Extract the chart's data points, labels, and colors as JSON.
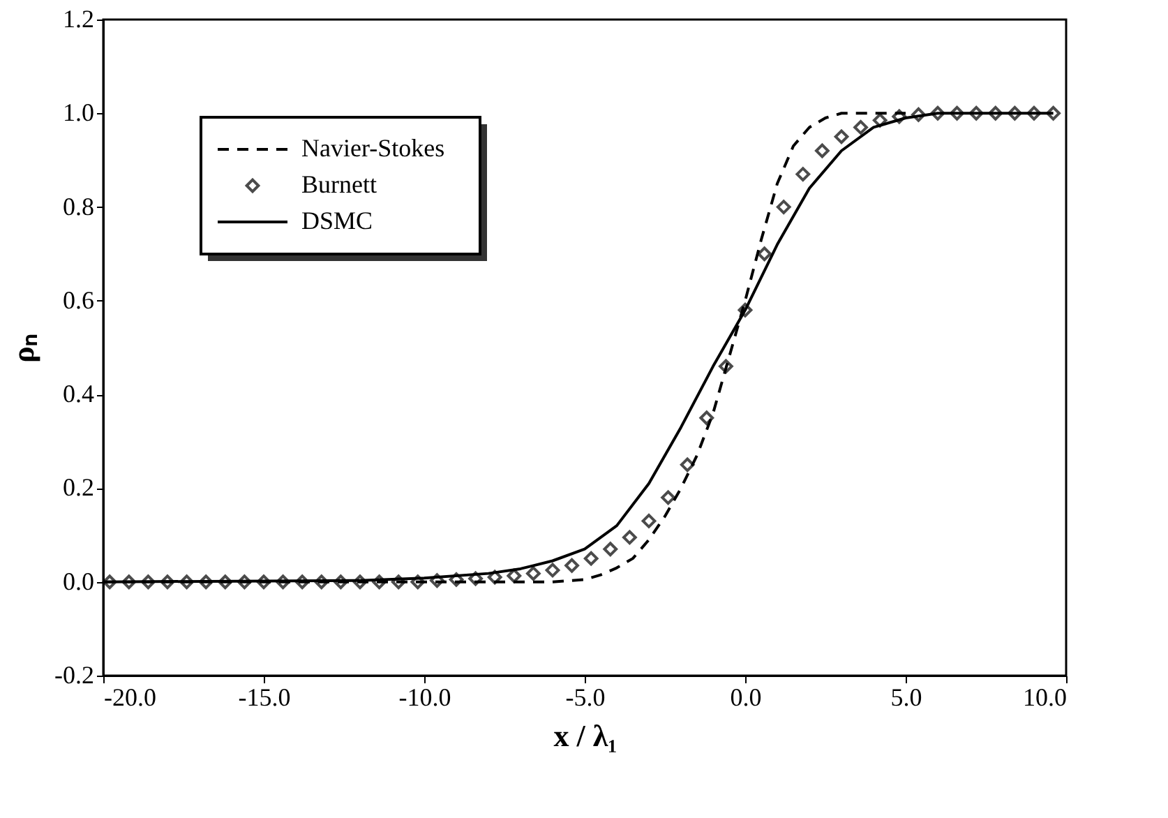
{
  "chart_data": {
    "type": "line",
    "xlabel": "x / λ₁",
    "ylabel": "ρₙ",
    "xlim": [
      -20,
      10
    ],
    "ylim": [
      -0.2,
      1.2
    ],
    "xticks": [
      {
        "value": -20,
        "label": "-20.0"
      },
      {
        "value": -15,
        "label": "-15.0"
      },
      {
        "value": -10,
        "label": "-10.0"
      },
      {
        "value": -5,
        "label": "-5.0"
      },
      {
        "value": 0,
        "label": "0.0"
      },
      {
        "value": 5,
        "label": "5.0"
      },
      {
        "value": 10,
        "label": "10.0"
      }
    ],
    "yticks": [
      {
        "value": -0.2,
        "label": "-0.2"
      },
      {
        "value": 0,
        "label": "0.0"
      },
      {
        "value": 0.2,
        "label": "0.2"
      },
      {
        "value": 0.4,
        "label": "0.4"
      },
      {
        "value": 0.6,
        "label": "0.6"
      },
      {
        "value": 0.8,
        "label": "0.8"
      },
      {
        "value": 1.0,
        "label": "1.0"
      },
      {
        "value": 1.2,
        "label": "1.2"
      }
    ],
    "legend": "top left",
    "grid": false,
    "series": [
      {
        "name": "Navier-Stokes",
        "type": "line",
        "line_style": "dashed",
        "color": "#000000",
        "x": [
          -20,
          -6,
          -5,
          -4.5,
          -4,
          -3.5,
          -3,
          -2.5,
          -2,
          -1.5,
          -1,
          -0.5,
          0,
          0.5,
          1,
          1.5,
          2,
          2.5,
          3,
          5
        ],
        "values": [
          0,
          0,
          0.005,
          0.015,
          0.03,
          0.05,
          0.09,
          0.14,
          0.2,
          0.27,
          0.36,
          0.48,
          0.6,
          0.73,
          0.85,
          0.93,
          0.97,
          0.99,
          1.0,
          1.0
        ]
      },
      {
        "name": "Burnett",
        "type": "scatter",
        "marker": "diamond",
        "color": "#000000",
        "x": [
          -19.8,
          -19.2,
          -18.6,
          -18.0,
          -17.4,
          -16.8,
          -16.2,
          -15.6,
          -15.0,
          -14.4,
          -13.8,
          -13.2,
          -12.6,
          -12.0,
          -11.4,
          -10.8,
          -10.2,
          -9.6,
          -9.0,
          -8.4,
          -7.8,
          -7.2,
          -6.6,
          -6.0,
          -5.4,
          -4.8,
          -4.2,
          -3.6,
          -3.0,
          -2.4,
          -1.8,
          -1.2,
          -0.6,
          0.0,
          0.6,
          1.2,
          1.8,
          2.4,
          3.0,
          3.6,
          4.2,
          4.8,
          5.4,
          6.0,
          6.6,
          7.2,
          7.8,
          8.4,
          9.0,
          9.6
        ],
        "values": [
          0,
          0,
          0,
          0,
          0,
          0,
          0,
          0,
          0,
          0,
          0,
          0,
          0,
          0,
          0,
          0,
          0,
          0.003,
          0.005,
          0.007,
          0.01,
          0.013,
          0.018,
          0.025,
          0.035,
          0.05,
          0.07,
          0.095,
          0.13,
          0.18,
          0.25,
          0.35,
          0.46,
          0.58,
          0.7,
          0.8,
          0.87,
          0.92,
          0.95,
          0.97,
          0.985,
          0.993,
          0.997,
          1.0,
          1.0,
          1.0,
          1.0,
          1.0,
          1.0,
          1.0
        ]
      },
      {
        "name": "DSMC",
        "type": "line",
        "line_style": "solid",
        "color": "#000000",
        "x": [
          -20,
          -12,
          -10,
          -8,
          -7,
          -6,
          -5,
          -4,
          -3,
          -2,
          -1,
          0,
          1,
          2,
          3,
          4,
          5,
          6,
          9.6
        ],
        "values": [
          0,
          0.003,
          0.008,
          0.018,
          0.028,
          0.045,
          0.07,
          0.12,
          0.21,
          0.33,
          0.46,
          0.58,
          0.72,
          0.84,
          0.92,
          0.97,
          0.99,
          1.0,
          1.0
        ]
      }
    ]
  }
}
